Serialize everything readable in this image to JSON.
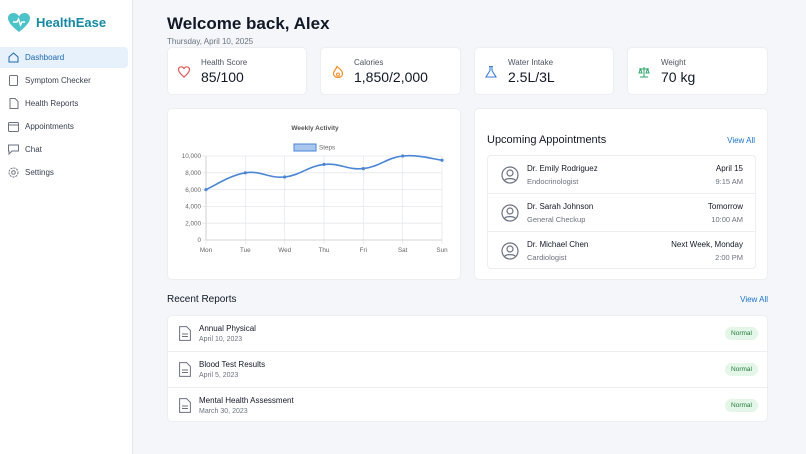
{
  "brand": "HealthEase",
  "nav": [
    "Dashboard",
    "Symptom Checker",
    "Health Reports",
    "Appointments",
    "Chat",
    "Settings"
  ],
  "header": {
    "title": "Welcome back, Alex",
    "date": "Thursday, April 10, 2025"
  },
  "stats": [
    {
      "label": "Health Score",
      "value": "85/100"
    },
    {
      "label": "Calories",
      "value": "1,850/2,000"
    },
    {
      "label": "Water Intake",
      "value": "2.5L/3L"
    },
    {
      "label": "Weight",
      "value": "70 kg"
    }
  ],
  "chart_data": {
    "type": "line",
    "title": "Weekly Activity",
    "categories": [
      "Mon",
      "Tue",
      "Wed",
      "Thu",
      "Fri",
      "Sat",
      "Sun"
    ],
    "series": [
      {
        "name": "Steps",
        "color": "#4a86d4",
        "values": [
          6000,
          8000,
          7500,
          9000,
          8500,
          10000,
          9500
        ]
      }
    ],
    "ylim": [
      0,
      10000
    ],
    "yticks": [
      0,
      {
        "value": 2000,
        "label": "2,000"
      },
      {
        "value": 4000,
        "label": "4,000"
      },
      {
        "value": 6000,
        "label": "6,000"
      },
      {
        "value": 8000,
        "label": "8,000"
      },
      {
        "value": 10000,
        "label": "10,000"
      }
    ],
    "grid": true
  },
  "appointments": {
    "title": "Upcoming Appointments",
    "link": "View All",
    "items": [
      {
        "doctor": "Dr. Emily Rodriguez",
        "specialty": "Endocrinologist",
        "date": "April 15",
        "time": "9:15 AM"
      },
      {
        "doctor": "Dr. Sarah Johnson",
        "specialty": "General Checkup",
        "date": "Tomorrow",
        "time": "10:00 AM"
      },
      {
        "doctor": "Dr. Michael Chen",
        "specialty": "Cardiologist",
        "date": "Next Week, Monday",
        "time": "2:00 PM"
      }
    ]
  },
  "reports": {
    "title": "Recent Reports",
    "link": "View All",
    "items": [
      {
        "name": "Annual Physical",
        "date": "April 10, 2023",
        "status": "Normal"
      },
      {
        "name": "Blood Test Results",
        "date": "April 5, 2023",
        "status": "Normal"
      },
      {
        "name": "Mental Health Assessment",
        "date": "March 30, 2023",
        "status": "Normal"
      }
    ]
  }
}
